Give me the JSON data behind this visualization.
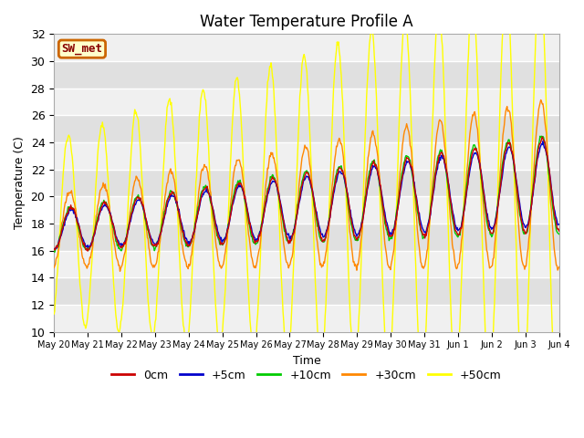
{
  "title": "Water Temperature Profile A",
  "xlabel": "Time",
  "ylabel": "Temperature (C)",
  "ylim": [
    10,
    32
  ],
  "x_tick_labels": [
    "May 20",
    "May 21",
    "May 22",
    "May 23",
    "May 24",
    "May 25",
    "May 26",
    "May 27",
    "May 28",
    "May 29",
    "May 30",
    "May 31",
    "Jun 1",
    "Jun 2",
    "Jun 3",
    "Jun 4"
  ],
  "line_colors": {
    "0cm": "#cc0000",
    "+5cm": "#0000cc",
    "+10cm": "#00cc00",
    "+30cm": "#ff8800",
    "+50cm": "#ffff00"
  },
  "line_labels": [
    "0cm",
    "+5cm",
    "+10cm",
    "+30cm",
    "+50cm"
  ],
  "legend_label": "SW_met",
  "legend_bg": "#ffffcc",
  "legend_edge": "#cc6600",
  "legend_text_color": "#880000",
  "bg_band_color": "#e0e0e0",
  "plot_bg": "#f0f0f0",
  "title_fontsize": 12,
  "axis_fontsize": 9,
  "legend_fontsize": 9
}
